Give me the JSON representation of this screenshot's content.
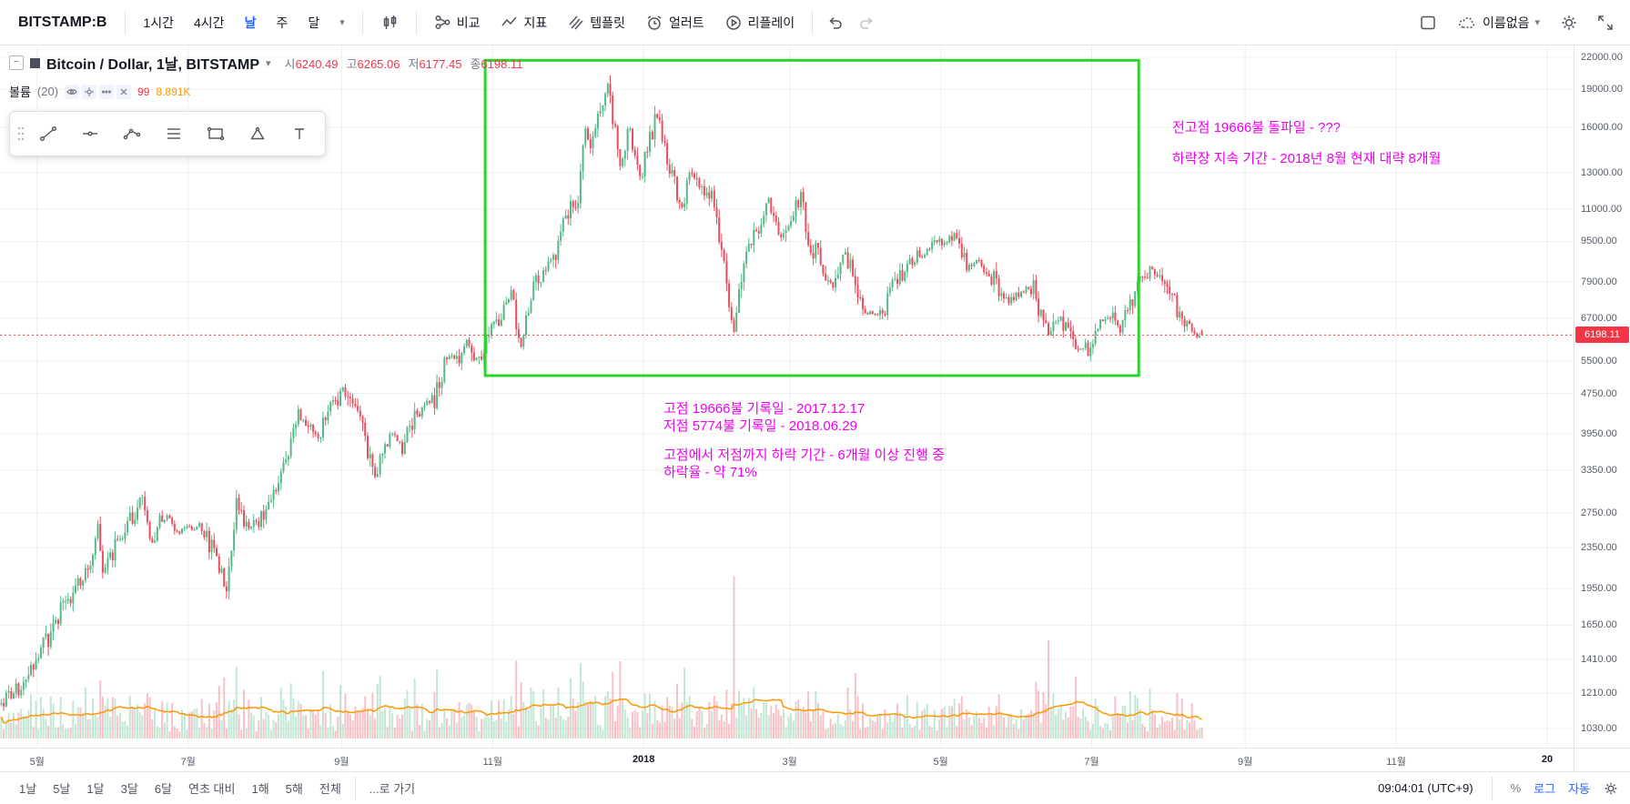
{
  "toolbar_top": {
    "symbol": "BITSTAMP:B",
    "intervals": [
      {
        "label": "1시간",
        "active": false
      },
      {
        "label": "4시간",
        "active": false
      },
      {
        "label": "날",
        "active": true
      },
      {
        "label": "주",
        "active": false
      },
      {
        "label": "달",
        "active": false
      }
    ],
    "compare_label": "비교",
    "indicators_label": "지표",
    "templates_label": "템플릿",
    "alerts_label": "얼러트",
    "replay_label": "리플레이",
    "layout_name": "이름없음"
  },
  "legend": {
    "title": "Bitcoin / Dollar, 1날, BITSTAMP",
    "ohlc": [
      {
        "label": "시",
        "value": "6240.49"
      },
      {
        "label": "고",
        "value": "6265.06"
      },
      {
        "label": "저",
        "value": "6177.45"
      },
      {
        "label": "종",
        "value": "6198.11"
      }
    ],
    "volume": {
      "name": "볼륨",
      "param": "(20)",
      "value1": "99",
      "value2": "8.891K"
    }
  },
  "annotations": {
    "top_right": [
      "전고점 19666불 돌파일 - ???",
      "하락장 지속 기간 - 2018년 8월 현재 대략 8개월"
    ],
    "middle_para1": [
      "고점 19666불 기록일 - 2017.12.17",
      "저점 5774불 기록일 - 2018.06.29"
    ],
    "middle_para2": [
      "고점에서 저점까지 하락 기간 - 6개월 이상 진행 중",
      "하락율 - 약 71%"
    ]
  },
  "price_axis": {
    "labels": [
      "22000.00",
      "19000.00",
      "16000.00",
      "13000.00",
      "11000.00",
      "9500.00",
      "7900.00",
      "6700.00",
      "5500.00",
      "4750.00",
      "3950.00",
      "3350.00",
      "2750.00",
      "2350.00",
      "1950.00",
      "1650.00",
      "1410.00",
      "1210.00",
      "1030.00"
    ],
    "last_price": "6198.11"
  },
  "time_axis": {
    "labels": [
      {
        "text": "5월",
        "date": "2017-05-01",
        "major": false
      },
      {
        "text": "7월",
        "date": "2017-07-01",
        "major": false
      },
      {
        "text": "9월",
        "date": "2017-09-01",
        "major": false
      },
      {
        "text": "11월",
        "date": "2017-11-01",
        "major": false
      },
      {
        "text": "2018",
        "date": "2018-01-01",
        "major": true
      },
      {
        "text": "3월",
        "date": "2018-03-01",
        "major": false
      },
      {
        "text": "5월",
        "date": "2018-05-01",
        "major": false
      },
      {
        "text": "7월",
        "date": "2018-07-01",
        "major": false
      },
      {
        "text": "9월",
        "date": "2018-09-01",
        "major": false
      },
      {
        "text": "11월",
        "date": "2018-11-01",
        "major": false
      },
      {
        "text": "20",
        "date": "2019-01-01",
        "major": true
      }
    ]
  },
  "bottom_toolbar": {
    "ranges": [
      "1날",
      "5날",
      "1달",
      "3달",
      "6달",
      "연초 대비",
      "1해",
      "5해",
      "전체"
    ],
    "goto": "...로 가기",
    "clock": "09:04:01 (UTC+9)",
    "percent": "%",
    "log": "로그",
    "auto": "자동"
  },
  "colors": {
    "up": "#53b987",
    "down": "#eb4d5c",
    "accent_blue": "#2962ff",
    "last_price_red": "#f23645",
    "annotation_magenta": "#f000f0",
    "drawing_rect_green": "#2bd42b",
    "volume_ma_orange": "#ff9800",
    "grid": "rgba(42,46,57,0.07)"
  },
  "chart_data": {
    "type": "candlestick",
    "title": "Bitcoin / Dollar, 1날, BITSTAMP",
    "scale": "log",
    "ohlc_current": {
      "open": 6240.49,
      "high": 6265.06,
      "low": 6177.45,
      "close": 6198.11
    },
    "price_ticks": [
      22000,
      19000,
      16000,
      13000,
      11000,
      9500,
      7900,
      6700,
      5500,
      4750,
      3950,
      3350,
      2750,
      2350,
      1950,
      1650,
      1410,
      1210,
      1030
    ],
    "key_points": {
      "all_time_high": {
        "date": "2017-12-17",
        "price": 19666
      },
      "cycle_low": {
        "date": "2018-06-29",
        "price": 5774
      },
      "last_close": {
        "date": "2018-08-14",
        "price": 6198.11
      },
      "decline_pct": "약 71%"
    },
    "anchors": [
      [
        "2017-04-16",
        1150
      ],
      [
        "2017-04-26",
        1280
      ],
      [
        "2017-05-10",
        1750
      ],
      [
        "2017-05-22",
        2150
      ],
      [
        "2017-05-25",
        2650
      ],
      [
        "2017-05-27",
        2050
      ],
      [
        "2017-06-03",
        2500
      ],
      [
        "2017-06-12",
        2950
      ],
      [
        "2017-06-15",
        2350
      ],
      [
        "2017-06-20",
        2700
      ],
      [
        "2017-06-27",
        2550
      ],
      [
        "2017-07-05",
        2600
      ],
      [
        "2017-07-10",
        2350
      ],
      [
        "2017-07-16",
        1920
      ],
      [
        "2017-07-20",
        2850
      ],
      [
        "2017-07-25",
        2550
      ],
      [
        "2017-08-01",
        2750
      ],
      [
        "2017-08-08",
        3400
      ],
      [
        "2017-08-14",
        4300
      ],
      [
        "2017-08-22",
        3950
      ],
      [
        "2017-09-01",
        4900
      ],
      [
        "2017-09-08",
        4250
      ],
      [
        "2017-09-14",
        3200
      ],
      [
        "2017-09-20",
        3950
      ],
      [
        "2017-09-25",
        3700
      ],
      [
        "2017-10-01",
        4400
      ],
      [
        "2017-10-08",
        4600
      ],
      [
        "2017-10-13",
        5650
      ],
      [
        "2017-10-17",
        5550
      ],
      [
        "2017-10-21",
        6050
      ],
      [
        "2017-10-25",
        5550
      ],
      [
        "2017-11-01",
        6450
      ],
      [
        "2017-11-08",
        7400
      ],
      [
        "2017-11-12",
        5900
      ],
      [
        "2017-11-17",
        7850
      ],
      [
        "2017-11-25",
        8750
      ],
      [
        "2017-12-01",
        10900
      ],
      [
        "2017-12-05",
        11700
      ],
      [
        "2017-12-08",
        16200
      ],
      [
        "2017-12-10",
        14300
      ],
      [
        "2017-12-17",
        19500
      ],
      [
        "2017-12-22",
        13500
      ],
      [
        "2017-12-26",
        15800
      ],
      [
        "2017-12-30",
        12800
      ],
      [
        "2018-01-06",
        17000
      ],
      [
        "2018-01-11",
        13300
      ],
      [
        "2018-01-16",
        11200
      ],
      [
        "2018-01-20",
        12900
      ],
      [
        "2018-01-28",
        11600
      ],
      [
        "2018-02-01",
        9100
      ],
      [
        "2018-02-06",
        6300
      ],
      [
        "2018-02-10",
        8600
      ],
      [
        "2018-02-16",
        10200
      ],
      [
        "2018-02-20",
        11600
      ],
      [
        "2018-02-25",
        9600
      ],
      [
        "2018-03-05",
        11500
      ],
      [
        "2018-03-09",
        9200
      ],
      [
        "2018-03-12",
        9100
      ],
      [
        "2018-03-18",
        7500
      ],
      [
        "2018-03-21",
        8950
      ],
      [
        "2018-03-25",
        8450
      ],
      [
        "2018-03-30",
        6850
      ],
      [
        "2018-04-04",
        6800
      ],
      [
        "2018-04-08",
        7000
      ],
      [
        "2018-04-12",
        7950
      ],
      [
        "2018-04-20",
        8850
      ],
      [
        "2018-04-25",
        9100
      ],
      [
        "2018-05-05",
        9800
      ],
      [
        "2018-05-11",
        8450
      ],
      [
        "2018-05-15",
        8650
      ],
      [
        "2018-05-20",
        8250
      ],
      [
        "2018-05-28",
        7150
      ],
      [
        "2018-06-02",
        7650
      ],
      [
        "2018-06-07",
        7650
      ],
      [
        "2018-06-10",
        6800
      ],
      [
        "2018-06-13",
        6250
      ],
      [
        "2018-06-18",
        6750
      ],
      [
        "2018-06-22",
        6100
      ],
      [
        "2018-06-24",
        5900
      ],
      [
        "2018-06-29",
        5850
      ],
      [
        "2018-07-03",
        6600
      ],
      [
        "2018-07-08",
        6750
      ],
      [
        "2018-07-12",
        6200
      ],
      [
        "2018-07-17",
        7400
      ],
      [
        "2018-07-24",
        8400
      ],
      [
        "2018-07-28",
        8150
      ],
      [
        "2018-07-31",
        7750
      ],
      [
        "2018-08-04",
        7000
      ],
      [
        "2018-08-08",
        6350
      ],
      [
        "2018-08-11",
        6150
      ],
      [
        "2018-08-14",
        6198
      ]
    ],
    "green_rect": {
      "from": "2017-10-29",
      "to": "2018-07-20",
      "price_top": 21700,
      "price_bottom": 5150
    },
    "volume": {
      "current": "8.891K",
      "ma_period": 20
    },
    "volume_spikes": {
      "2017-09-15": 60,
      "2017-11-12": 62,
      "2017-12-22": 85,
      "2018-01-17": 78,
      "2018-02-06": 178,
      "2018-03-27": 72,
      "2018-06-13": 108,
      "2018-06-24": 68
    }
  }
}
